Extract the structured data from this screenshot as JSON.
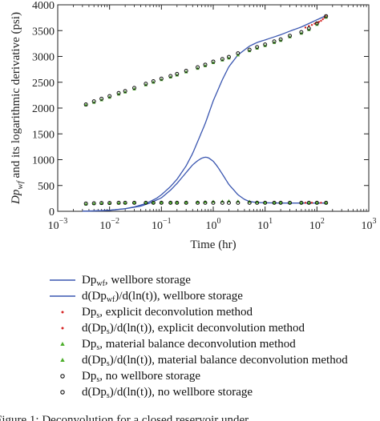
{
  "chart_data": {
    "type": "scatter",
    "xscale": "log",
    "xlim": [
      0.001,
      1000
    ],
    "ylim": [
      0,
      4000
    ],
    "xlabel": "Time (hr)",
    "ylabel": "Dp_wf and its logarithmic derivative (psi)",
    "ylabel_parts": {
      "main": "Dp",
      "sub": "wf",
      "rest": " and its logarithmic derivative (psi)"
    },
    "xticks": [
      {
        "value": 0.001,
        "base": "10",
        "exp": "−3"
      },
      {
        "value": 0.01,
        "base": "10",
        "exp": "−2"
      },
      {
        "value": 0.1,
        "base": "10",
        "exp": "−1"
      },
      {
        "value": 1,
        "base": "10",
        "exp": "0"
      },
      {
        "value": 10,
        "base": "10",
        "exp": "1"
      },
      {
        "value": 100,
        "base": "10",
        "exp": "2"
      },
      {
        "value": 1000,
        "base": "10",
        "exp": "3"
      }
    ],
    "yticks": [
      0,
      500,
      1000,
      1500,
      2000,
      2500,
      3000,
      3500,
      4000
    ],
    "grid": false,
    "legend_position": "below",
    "series": [
      {
        "name": "Dp_wf, wellbore storage",
        "style": "line",
        "color": "#3a56b0",
        "x": [
          0.003,
          0.006,
          0.01,
          0.02,
          0.03,
          0.05,
          0.08,
          0.1,
          0.15,
          0.2,
          0.3,
          0.4,
          0.5,
          0.7,
          1,
          1.5,
          2,
          3,
          5,
          7,
          10,
          20,
          30,
          50,
          100,
          150
        ],
        "y": [
          2,
          8,
          20,
          50,
          85,
          150,
          250,
          320,
          480,
          620,
          880,
          1120,
          1350,
          1700,
          2140,
          2550,
          2800,
          3030,
          3200,
          3270,
          3320,
          3420,
          3490,
          3570,
          3710,
          3790
        ]
      },
      {
        "name": "d(Dp_wf)/d(ln(t)), wellbore storage",
        "style": "line",
        "color": "#3a56b0",
        "x": [
          0.003,
          0.01,
          0.02,
          0.04,
          0.06,
          0.1,
          0.15,
          0.2,
          0.3,
          0.4,
          0.5,
          0.6,
          0.7,
          0.8,
          1,
          1.2,
          1.5,
          2,
          3,
          4,
          5,
          7,
          10,
          20,
          50,
          150
        ],
        "y": [
          2,
          20,
          50,
          100,
          160,
          260,
          410,
          540,
          750,
          900,
          980,
          1030,
          1050,
          1040,
          970,
          870,
          720,
          520,
          320,
          230,
          190,
          170,
          165,
          160,
          160,
          160
        ]
      },
      {
        "name": "Dp_s, explicit deconvolution method",
        "style": "marker",
        "marker": "dot",
        "color": "#d62020",
        "x": [
          60,
          70,
          80,
          90,
          100,
          110,
          120,
          130,
          140,
          150
        ],
        "y": [
          3560,
          3590,
          3610,
          3635,
          3650,
          3670,
          3690,
          3720,
          3750,
          3780
        ]
      },
      {
        "name": "d(Dp_s)/d(ln(t)), explicit deconvolution method",
        "style": "marker",
        "marker": "dot",
        "color": "#d62020",
        "x": [
          60,
          80,
          100,
          120,
          150
        ],
        "y": [
          165,
          165,
          165,
          165,
          165
        ]
      },
      {
        "name": "Dp_s, material balance deconvolution method",
        "style": "marker",
        "marker": "triangle",
        "color": "#4cae2a",
        "x": [
          0.0035,
          0.005,
          0.007,
          0.01,
          0.015,
          0.02,
          0.03,
          0.05,
          0.07,
          0.1,
          0.15,
          0.2,
          0.3,
          0.5,
          0.7,
          1,
          1.5,
          2,
          3,
          5,
          7,
          10,
          15,
          20,
          30,
          50,
          70,
          100,
          150
        ],
        "y": [
          2060,
          2110,
          2160,
          2210,
          2270,
          2310,
          2370,
          2450,
          2500,
          2550,
          2600,
          2640,
          2700,
          2770,
          2820,
          2880,
          2930,
          2970,
          3030,
          3110,
          3160,
          3210,
          3270,
          3310,
          3380,
          3450,
          3520,
          3620,
          3760
        ]
      },
      {
        "name": "d(Dp_s)/d(ln(t)), material balance deconvolution method",
        "style": "marker",
        "marker": "triangle",
        "color": "#4cae2a",
        "x": [
          0.0035,
          0.005,
          0.007,
          0.01,
          0.015,
          0.02,
          0.03,
          0.05,
          0.07,
          0.1,
          0.15,
          0.2,
          0.3,
          0.5,
          0.7,
          1,
          1.5,
          2,
          3,
          5,
          7,
          10,
          15,
          20,
          30,
          50,
          70,
          100,
          150
        ],
        "y": [
          140,
          150,
          155,
          160,
          160,
          165,
          170,
          170,
          170,
          175,
          175,
          175,
          175,
          180,
          185,
          190,
          195,
          200,
          195,
          190,
          180,
          175,
          170,
          170,
          165,
          165,
          165,
          165,
          165
        ]
      },
      {
        "name": "Dp_s, no wellbore storage",
        "style": "marker",
        "marker": "circle",
        "color": "#111111",
        "x": [
          0.0035,
          0.005,
          0.007,
          0.01,
          0.015,
          0.02,
          0.03,
          0.05,
          0.07,
          0.1,
          0.15,
          0.2,
          0.3,
          0.5,
          0.7,
          1,
          1.5,
          2,
          3,
          5,
          7,
          10,
          15,
          20,
          30,
          50,
          70,
          100,
          150
        ],
        "y": [
          2070,
          2130,
          2180,
          2230,
          2290,
          2330,
          2390,
          2470,
          2520,
          2570,
          2620,
          2660,
          2720,
          2790,
          2840,
          2900,
          2950,
          2990,
          3060,
          3130,
          3180,
          3230,
          3290,
          3330,
          3400,
          3470,
          3540,
          3640,
          3780
        ]
      },
      {
        "name": "d(Dp_s)/d(ln(t)), no wellbore storage",
        "style": "marker",
        "marker": "circle",
        "color": "#111111",
        "x": [
          0.0035,
          0.005,
          0.007,
          0.01,
          0.015,
          0.02,
          0.03,
          0.05,
          0.07,
          0.1,
          0.15,
          0.2,
          0.3,
          0.5,
          0.7,
          1,
          1.5,
          2,
          3,
          5,
          7,
          10,
          15,
          20,
          30,
          50,
          70,
          100,
          150
        ],
        "y": [
          150,
          155,
          160,
          160,
          165,
          165,
          165,
          165,
          165,
          165,
          165,
          165,
          165,
          165,
          165,
          165,
          165,
          165,
          165,
          165,
          165,
          165,
          165,
          165,
          165,
          165,
          165,
          165,
          165
        ]
      }
    ]
  },
  "legend": [
    {
      "symbol": "line",
      "color": "#3a56b0",
      "parts": [
        [
          "",
          "Dp"
        ],
        [
          "sub",
          "wf"
        ],
        [
          "",
          ", wellbore storage"
        ]
      ]
    },
    {
      "symbol": "line",
      "color": "#3a56b0",
      "parts": [
        [
          "",
          "d(Dp"
        ],
        [
          "sub",
          "wf"
        ],
        [
          "",
          ")/d(ln(t)), wellbore storage"
        ]
      ]
    },
    {
      "symbol": "dot",
      "color": "#d62020",
      "parts": [
        [
          "",
          "Dp"
        ],
        [
          "sub",
          "s"
        ],
        [
          "",
          ", explicit deconvolution method"
        ]
      ]
    },
    {
      "symbol": "dot",
      "color": "#d62020",
      "parts": [
        [
          "",
          "d(Dp"
        ],
        [
          "sub",
          "s"
        ],
        [
          "",
          ")/d(ln(t)), explicit deconvolution method"
        ]
      ]
    },
    {
      "symbol": "triangle",
      "color": "#4cae2a",
      "parts": [
        [
          "",
          "Dp"
        ],
        [
          "sub",
          "s"
        ],
        [
          "",
          ", material balance deconvolution method"
        ]
      ]
    },
    {
      "symbol": "triangle",
      "color": "#4cae2a",
      "parts": [
        [
          "",
          "d(Dp"
        ],
        [
          "sub",
          "s"
        ],
        [
          "",
          ")/d(ln(t)), material balance deconvolution method"
        ]
      ]
    },
    {
      "symbol": "circle",
      "color": "#111111",
      "parts": [
        [
          "",
          "Dp"
        ],
        [
          "sub",
          "s"
        ],
        [
          "",
          ", no wellbore storage"
        ]
      ]
    },
    {
      "symbol": "circle",
      "color": "#111111",
      "parts": [
        [
          "",
          "d(Dp"
        ],
        [
          "sub",
          "s"
        ],
        [
          "",
          ")/d(ln(t)), no wellbore storage"
        ]
      ]
    }
  ],
  "caption": "Figure 1: Deconvolution for a closed reservoir under …"
}
